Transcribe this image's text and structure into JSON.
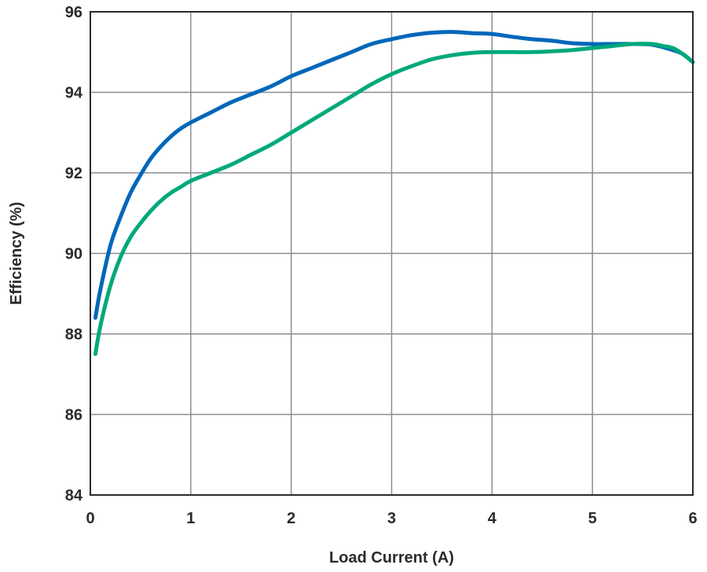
{
  "chart_data": {
    "type": "line",
    "title": "",
    "xlabel": "Load Current (A)",
    "ylabel": "Efficiency (%)",
    "xlim": [
      0,
      6
    ],
    "ylim": [
      84,
      96
    ],
    "xticks": [
      0,
      1,
      2,
      3,
      4,
      5,
      6
    ],
    "yticks": [
      84,
      86,
      88,
      90,
      92,
      94,
      96
    ],
    "grid": true,
    "legend": "none",
    "series": [
      {
        "color": "#0067b9",
        "points": [
          [
            0.05,
            88.4
          ],
          [
            0.1,
            89.1
          ],
          [
            0.2,
            90.2
          ],
          [
            0.3,
            90.9
          ],
          [
            0.4,
            91.5
          ],
          [
            0.5,
            91.95
          ],
          [
            0.6,
            92.35
          ],
          [
            0.7,
            92.65
          ],
          [
            0.8,
            92.9
          ],
          [
            0.9,
            93.1
          ],
          [
            1.0,
            93.25
          ],
          [
            1.2,
            93.5
          ],
          [
            1.4,
            93.75
          ],
          [
            1.6,
            93.95
          ],
          [
            1.8,
            94.15
          ],
          [
            2.0,
            94.4
          ],
          [
            2.2,
            94.6
          ],
          [
            2.4,
            94.8
          ],
          [
            2.6,
            95.0
          ],
          [
            2.8,
            95.2
          ],
          [
            3.0,
            95.32
          ],
          [
            3.2,
            95.42
          ],
          [
            3.4,
            95.48
          ],
          [
            3.6,
            95.5
          ],
          [
            3.8,
            95.47
          ],
          [
            4.0,
            95.45
          ],
          [
            4.2,
            95.38
          ],
          [
            4.4,
            95.32
          ],
          [
            4.6,
            95.28
          ],
          [
            4.8,
            95.22
          ],
          [
            5.0,
            95.2
          ],
          [
            5.2,
            95.2
          ],
          [
            5.4,
            95.2
          ],
          [
            5.6,
            95.18
          ],
          [
            5.8,
            95.05
          ],
          [
            5.9,
            94.95
          ],
          [
            6.0,
            94.75
          ]
        ]
      },
      {
        "color": "#00a97a",
        "points": [
          [
            0.05,
            87.5
          ],
          [
            0.1,
            88.2
          ],
          [
            0.2,
            89.2
          ],
          [
            0.3,
            89.9
          ],
          [
            0.4,
            90.4
          ],
          [
            0.5,
            90.75
          ],
          [
            0.6,
            91.05
          ],
          [
            0.7,
            91.3
          ],
          [
            0.8,
            91.5
          ],
          [
            0.9,
            91.65
          ],
          [
            1.0,
            91.8
          ],
          [
            1.2,
            92.0
          ],
          [
            1.4,
            92.2
          ],
          [
            1.6,
            92.45
          ],
          [
            1.8,
            92.7
          ],
          [
            2.0,
            93.0
          ],
          [
            2.2,
            93.3
          ],
          [
            2.4,
            93.6
          ],
          [
            2.6,
            93.9
          ],
          [
            2.8,
            94.2
          ],
          [
            3.0,
            94.45
          ],
          [
            3.2,
            94.65
          ],
          [
            3.4,
            94.82
          ],
          [
            3.6,
            94.92
          ],
          [
            3.8,
            94.98
          ],
          [
            4.0,
            95.0
          ],
          [
            4.2,
            95.0
          ],
          [
            4.4,
            95.0
          ],
          [
            4.6,
            95.02
          ],
          [
            4.8,
            95.05
          ],
          [
            5.0,
            95.1
          ],
          [
            5.2,
            95.15
          ],
          [
            5.4,
            95.2
          ],
          [
            5.6,
            95.2
          ],
          [
            5.7,
            95.15
          ],
          [
            5.8,
            95.1
          ],
          [
            5.9,
            94.95
          ],
          [
            6.0,
            94.75
          ]
        ]
      }
    ]
  }
}
